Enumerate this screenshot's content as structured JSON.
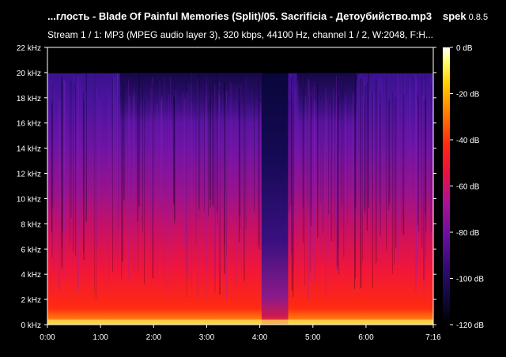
{
  "header": {
    "title": "...глость - Blade Of Painful Memories (Split)/05. Sacrificia - Детоубийство.mp3",
    "app_name": "spek",
    "app_version": "0.8.5",
    "stream_info": "Stream 1 / 1: MP3 (MPEG audio layer 3), 320 kbps, 44100 Hz, channel 1 / 2, W:2048, F:H..."
  },
  "colors": {
    "background": "#000000",
    "axis": "#ffffff",
    "palette": [
      "#000000",
      "#100a3c",
      "#300a70",
      "#6a0fa0",
      "#b01290",
      "#e8123a",
      "#ff2a10",
      "#ff7a00",
      "#ffd000",
      "#ffff70",
      "#ffffff"
    ]
  },
  "chart_data": {
    "type": "heatmap",
    "title": "",
    "xlabel": "",
    "ylabel": "",
    "x_ticks": [
      "0:00",
      "1:00",
      "2:00",
      "3:00",
      "4:00",
      "5:00",
      "6:00",
      "7:16"
    ],
    "x_tick_seconds": [
      0,
      60,
      120,
      180,
      240,
      300,
      360,
      436
    ],
    "xlim": [
      0,
      436
    ],
    "y_ticks": [
      "0 kHz",
      "2 kHz",
      "4 kHz",
      "6 kHz",
      "8 kHz",
      "10 kHz",
      "12 kHz",
      "14 kHz",
      "16 kHz",
      "18 kHz",
      "20 kHz",
      "22 kHz"
    ],
    "y_tick_khz": [
      0,
      2,
      4,
      6,
      8,
      10,
      12,
      14,
      16,
      18,
      20,
      22
    ],
    "ylim": [
      0,
      22
    ],
    "colorbar": {
      "ticks": [
        "0 dB",
        "-20 dB",
        "-40 dB",
        "-60 dB",
        "-80 dB",
        "-100 dB",
        "-120 dB"
      ],
      "tick_db": [
        0,
        -20,
        -40,
        -60,
        -80,
        -100,
        -120
      ],
      "range": [
        -120,
        0
      ]
    },
    "bandwidth_cutoff_khz": 20,
    "quiet_section_seconds": [
      242,
      272
    ]
  }
}
